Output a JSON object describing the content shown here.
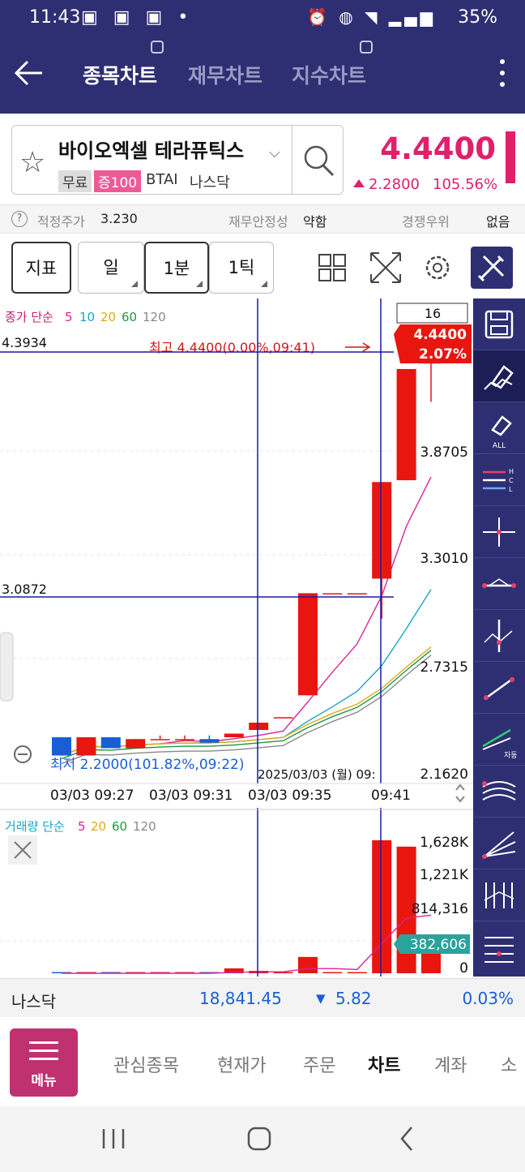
{
  "status": {
    "time": "11:43",
    "battery": "35%"
  },
  "header": {
    "tabs": [
      {
        "label": "종목차트",
        "active": true
      },
      {
        "label": "재무차트",
        "active": false
      },
      {
        "label": "지수차트",
        "active": false
      }
    ]
  },
  "stock": {
    "name": "바이오엑셀 테라퓨틱스",
    "tag_free": "무료",
    "tag_margin": "증100",
    "ticker": "BTAI",
    "market": "나스닥",
    "price": "4.4400",
    "change": "2.2800",
    "change_pct": "105.56%"
  },
  "info": {
    "fair_label": "적정주가",
    "fair_value": "3.230",
    "stability_label": "재무안정성",
    "stability_value": "약함",
    "competition_label": "경쟁우위",
    "competition_value": "없음"
  },
  "toolbar": {
    "indicator": "지표",
    "day": "일",
    "minute": "1분",
    "tick": "1틱"
  },
  "chart_data": {
    "type": "candlestick",
    "price_legend": {
      "label": "종가 단순",
      "periods": [
        "5",
        "10",
        "20",
        "60",
        "120"
      ]
    },
    "volume_legend": {
      "label": "거래량 단순",
      "periods": [
        "5",
        "20",
        "60",
        "120"
      ]
    },
    "candle_count_box": "16",
    "cursor_price_box": [
      "4.4400",
      "2.07%"
    ],
    "high_annotation": "최고 4.4400(0.00%,09:41)",
    "low_annotation": "최저 2.2000(101.82%,09:22)",
    "crosshair_y_labels": [
      "4.3934",
      "3.0872"
    ],
    "price_axis_labels": [
      "3.8705",
      "3.3010",
      "2.7315",
      "2.1620"
    ],
    "price_range": [
      2.162,
      4.44
    ],
    "time_axis_labels": [
      "03/03 09:27",
      "03/03 09:31",
      "03/03 09:35",
      "09:41"
    ],
    "crosshair_date_label": "2025/03/03 (월) 09:",
    "volume_axis_labels": [
      "1,628K",
      "1,221K",
      "814,316",
      "0"
    ],
    "volume_current_box": "382,606",
    "volume_range": [
      0,
      1628000
    ],
    "candles": [
      {
        "o": 2.3,
        "h": 2.3,
        "l": 2.2,
        "c": 2.2,
        "v": 0
      },
      {
        "o": 2.2,
        "h": 2.3,
        "l": 2.2,
        "c": 2.3,
        "v": 0
      },
      {
        "o": 2.3,
        "h": 2.3,
        "l": 2.24,
        "c": 2.24,
        "v": 0
      },
      {
        "o": 2.24,
        "h": 2.29,
        "l": 2.24,
        "c": 2.29,
        "v": 0
      },
      {
        "o": 2.29,
        "h": 2.31,
        "l": 2.29,
        "c": 2.29,
        "v": 0
      },
      {
        "o": 2.29,
        "h": 2.31,
        "l": 2.29,
        "c": 2.29,
        "v": 0
      },
      {
        "o": 2.29,
        "h": 2.31,
        "l": 2.27,
        "c": 2.27,
        "v": 0
      },
      {
        "o": 2.3,
        "h": 2.32,
        "l": 2.3,
        "c": 2.32,
        "v": 60000
      },
      {
        "o": 2.34,
        "h": 2.38,
        "l": 2.34,
        "c": 2.38,
        "v": 30000
      },
      {
        "o": 2.41,
        "h": 2.41,
        "l": 2.41,
        "c": 2.41,
        "v": 0
      },
      {
        "o": 2.53,
        "h": 3.09,
        "l": 2.53,
        "c": 3.09,
        "v": 200000
      },
      {
        "o": 3.09,
        "h": 3.09,
        "l": 3.09,
        "c": 3.09,
        "v": 0
      },
      {
        "o": 3.09,
        "h": 3.09,
        "l": 3.09,
        "c": 3.09,
        "v": 0
      },
      {
        "o": 3.17,
        "h": 3.7,
        "l": 2.95,
        "c": 3.7,
        "v": 1628000
      },
      {
        "o": 3.71,
        "h": 4.32,
        "l": 3.71,
        "c": 4.32,
        "v": 1550000
      },
      {
        "o": 4.35,
        "h": 4.44,
        "l": 4.14,
        "c": 4.44,
        "v": 382606
      }
    ],
    "colors": {
      "up": "#e8160f",
      "down": "#1a5ed6",
      "ma5": "#d6249a",
      "ma10": "#1aa4c8",
      "ma20": "#e0a91a",
      "ma60": "#1a9a3c",
      "ma120": "#888888"
    }
  },
  "nasdaq": {
    "label": "나스닥",
    "value": "18,841.45",
    "change": "5.82",
    "pct": "0.03%"
  },
  "nav": {
    "menu": "메뉴",
    "items": [
      "관심종목",
      "현재가",
      "주문",
      "차트",
      "계좌",
      "소"
    ]
  }
}
